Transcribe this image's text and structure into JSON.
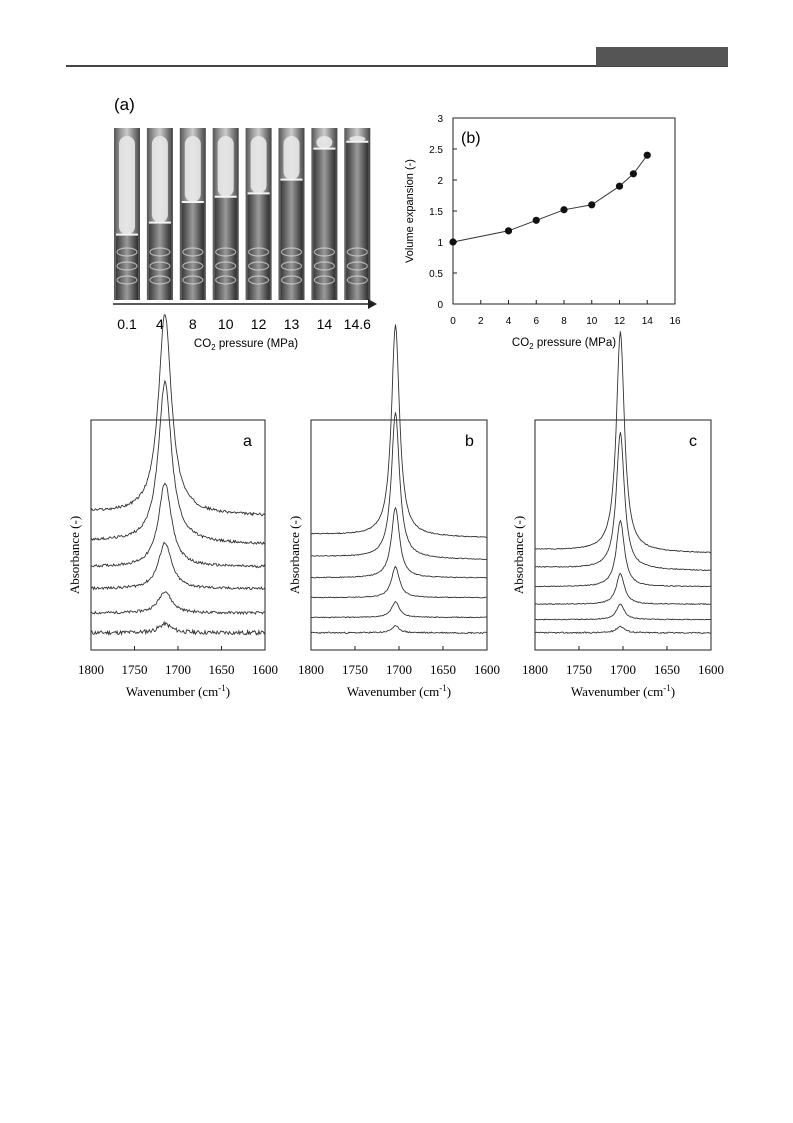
{
  "figure_a": {
    "label": "(a)",
    "pressures": [
      "0.1",
      "4",
      "8",
      "10",
      "12",
      "13",
      "14",
      "14.6"
    ],
    "axis_label": "CO",
    "axis_label_sub": "2",
    "axis_label_tail": " pressure (MPa)"
  },
  "chart_data": [
    {
      "type": "line",
      "panel_label": "(b)",
      "xlabel": "CO2 pressure (MPa)",
      "ylabel": "Volume expansion (-)",
      "xlim": [
        0,
        16
      ],
      "ylim": [
        0,
        3
      ],
      "x_ticks": [
        "0",
        "2",
        "4",
        "6",
        "8",
        "10",
        "12",
        "14",
        "16"
      ],
      "y_ticks": [
        "0",
        "0.5",
        "1",
        "1.5",
        "2",
        "2.5",
        "3"
      ],
      "x": [
        0,
        4,
        6,
        8,
        10,
        12,
        13,
        14
      ],
      "y": [
        1.0,
        1.18,
        1.35,
        1.52,
        1.6,
        1.9,
        2.1,
        2.4
      ],
      "marker": "filled-circle",
      "grid": false
    },
    {
      "type": "line",
      "panel_label": "a",
      "xlabel": "Wavenumber (cm",
      "xlabel_sup": "-1",
      "ylabel": "Absorbance (-)",
      "x_ticks": [
        "1800",
        "1750",
        "1700",
        "1650",
        "1600"
      ],
      "xlim": [
        1800,
        1600
      ],
      "peak_center": 1715,
      "peak_width": 9,
      "baselines": [
        0.06,
        0.15,
        0.26,
        0.36,
        0.47,
        0.6
      ],
      "peak_heights": [
        0.04,
        0.1,
        0.21,
        0.38,
        0.73,
        0.91
      ],
      "noise": 0.012
    },
    {
      "type": "line",
      "panel_label": "b",
      "xlabel": "Wavenumber (cm",
      "xlabel_sup": "-1",
      "ylabel": "Absorbance (-)",
      "x_ticks": [
        "1800",
        "1750",
        "1700",
        "1650",
        "1600"
      ],
      "xlim": [
        1800,
        1600
      ],
      "peak_center": 1704,
      "peak_width": 5.5,
      "baselines": [
        0.06,
        0.13,
        0.22,
        0.31,
        0.4,
        0.5
      ],
      "peak_heights": [
        0.03,
        0.07,
        0.14,
        0.32,
        0.66,
        0.96
      ],
      "noise": 0.004
    },
    {
      "type": "line",
      "panel_label": "c",
      "xlabel": "Wavenumber (cm",
      "xlabel_sup": "-1",
      "ylabel": "Absorbance (-)",
      "x_ticks": [
        "1800",
        "1750",
        "1700",
        "1650",
        "1600"
      ],
      "xlim": [
        1800,
        1600
      ],
      "peak_center": 1703,
      "peak_width": 5.5,
      "baselines": [
        0.06,
        0.12,
        0.19,
        0.27,
        0.35,
        0.43
      ],
      "peak_heights": [
        0.03,
        0.07,
        0.14,
        0.3,
        0.62,
        1.0
      ],
      "noise": 0.004
    }
  ]
}
